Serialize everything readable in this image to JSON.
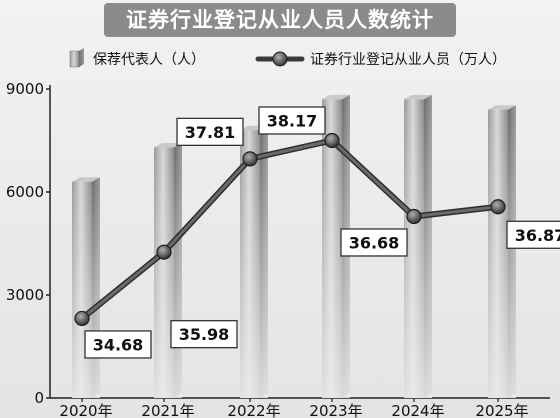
{
  "chart_data": {
    "type": "bar",
    "title": "证券行业登记从业人员人数统计",
    "categories": [
      "2020年",
      "2021年",
      "2022年",
      "2023年",
      "2024年",
      "2025年"
    ],
    "series": [
      {
        "name": "保荐代表人（人）",
        "type": "bar",
        "axis": "left",
        "values": [
          6300,
          7300,
          7800,
          8700,
          8700,
          8400
        ]
      },
      {
        "name": "证券行业登记从业人员（万人）",
        "type": "line",
        "axis": "right-hidden",
        "values": [
          34.68,
          35.98,
          37.81,
          38.17,
          36.68,
          36.87
        ],
        "labels": [
          "34.68",
          "35.98",
          "37.81",
          "38.17",
          "36.68",
          "36.87"
        ]
      }
    ],
    "yticks": [
      "0",
      "3000",
      "6000",
      "9000"
    ],
    "ylim": [
      0,
      9000
    ],
    "line_ylim": [
      33.12,
      39.18
    ],
    "grid": false,
    "legend": "top"
  }
}
